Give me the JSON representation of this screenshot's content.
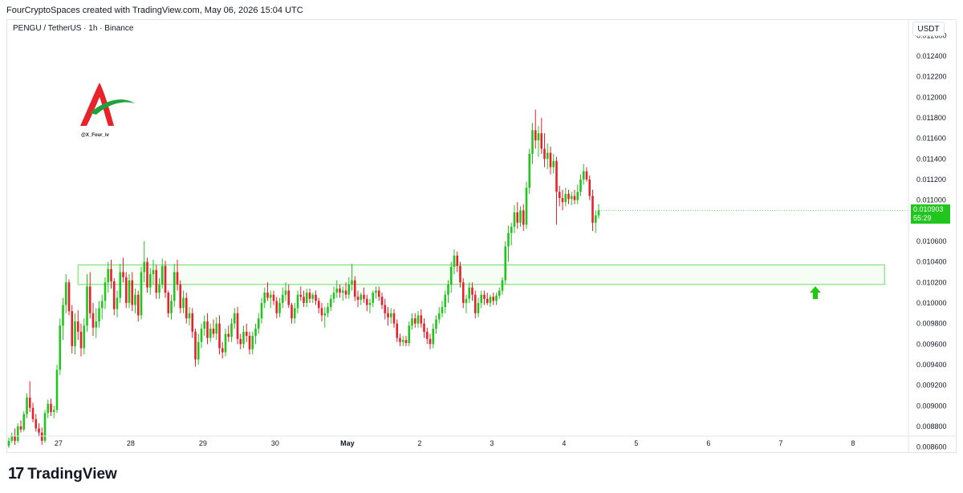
{
  "header": {
    "attribution": "FourCryptoSpaces created with TradingView.com, May 06, 2026 15:04 UTC"
  },
  "legend": {
    "symbol": "PENGU / TetherUS · 1h · Binance"
  },
  "watermark": {
    "handle": "@X_Four_iv"
  },
  "price_scale": {
    "currency": "USDT",
    "last_price": "0.010903",
    "countdown": "55:29",
    "last_price_color": "#22c51e"
  },
  "footer": {
    "brand": "TradingView",
    "logo_mark": "17"
  },
  "colors": {
    "up": "#22c51e",
    "down": "#e8212b",
    "zone": "#7ee37a",
    "arrow": "#1ec90f"
  },
  "chart_data": {
    "type": "candlestick",
    "title": "PENGU / TetherUS · 1h · Binance",
    "ylim": [
      0.00855,
      0.01275
    ],
    "y_ticks": [
      "0.012600",
      "0.012400",
      "0.012200",
      "0.012000",
      "0.011800",
      "0.011600",
      "0.011400",
      "0.011200",
      "0.011000",
      "0.010800",
      "0.010600",
      "0.010400",
      "0.010200",
      "0.010000",
      "0.009800",
      "0.009600",
      "0.009400",
      "0.009200",
      "0.009000",
      "0.008800",
      "0.008600"
    ],
    "y_tick_values": [
      0.0126,
      0.0124,
      0.0122,
      0.012,
      0.0118,
      0.0116,
      0.0114,
      0.0112,
      0.011,
      0.0108,
      0.0106,
      0.0104,
      0.0102,
      0.01,
      0.0098,
      0.0096,
      0.0094,
      0.0092,
      0.009,
      0.0088,
      0.0086
    ],
    "x_ticks": [
      {
        "label": "27",
        "t": 16.5
      },
      {
        "label": "28",
        "t": 40.5
      },
      {
        "label": "29",
        "t": 64.5
      },
      {
        "label": "30",
        "t": 88.5
      },
      {
        "label": "May",
        "t": 112.5,
        "bold": true
      },
      {
        "label": "2",
        "t": 136.5
      },
      {
        "label": "3",
        "t": 160.5
      },
      {
        "label": "4",
        "t": 184.5
      },
      {
        "label": "5",
        "t": 208.5
      },
      {
        "label": "6",
        "t": 232.5
      },
      {
        "label": "7",
        "t": 256.5
      },
      {
        "label": "8",
        "t": 280.5
      }
    ],
    "price_zone": {
      "low": 0.01018,
      "high": 0.01037,
      "t_start": 23,
      "t_end": 291
    },
    "arrow": {
      "t": 268,
      "price": 0.0101,
      "direction": "up"
    },
    "candles": [
      [
        0.00861,
        0.00869,
        0.00859,
        0.00866
      ],
      [
        0.00866,
        0.00874,
        0.00864,
        0.00871
      ],
      [
        0.00871,
        0.00878,
        0.00862,
        0.00866
      ],
      [
        0.00866,
        0.00883,
        0.00864,
        0.0088
      ],
      [
        0.0088,
        0.00886,
        0.00874,
        0.00877
      ],
      [
        0.00877,
        0.00895,
        0.00875,
        0.00892
      ],
      [
        0.00892,
        0.00912,
        0.00888,
        0.00908
      ],
      [
        0.00908,
        0.00924,
        0.00894,
        0.00898
      ],
      [
        0.00898,
        0.00903,
        0.00884,
        0.00887
      ],
      [
        0.00887,
        0.00892,
        0.00875,
        0.00878
      ],
      [
        0.00878,
        0.00883,
        0.0087,
        0.00874
      ],
      [
        0.00874,
        0.00879,
        0.00862,
        0.00866
      ],
      [
        0.00866,
        0.00896,
        0.00864,
        0.00893
      ],
      [
        0.00893,
        0.00906,
        0.00888,
        0.00902
      ],
      [
        0.00902,
        0.00907,
        0.0089,
        0.00894
      ],
      [
        0.00894,
        0.009,
        0.00888,
        0.00896
      ],
      [
        0.00896,
        0.0094,
        0.00893,
        0.00935
      ],
      [
        0.00935,
        0.00985,
        0.0093,
        0.00978
      ],
      [
        0.00978,
        0.01005,
        0.00964,
        0.00998
      ],
      [
        0.00998,
        0.01028,
        0.0099,
        0.0102
      ],
      [
        0.0102,
        0.01023,
        0.00988,
        0.00992
      ],
      [
        0.00992,
        0.00998,
        0.00951,
        0.00958
      ],
      [
        0.00958,
        0.0099,
        0.0095,
        0.00982
      ],
      [
        0.00982,
        0.00993,
        0.00964,
        0.00972
      ],
      [
        0.00972,
        0.0098,
        0.00948,
        0.00956
      ],
      [
        0.00956,
        0.00985,
        0.0095,
        0.00978
      ],
      [
        0.00978,
        0.01028,
        0.00972,
        0.01016
      ],
      [
        0.01016,
        0.0103,
        0.00985,
        0.0099
      ],
      [
        0.0099,
        0.01,
        0.00968,
        0.00976
      ],
      [
        0.00976,
        0.00995,
        0.00966,
        0.00982
      ],
      [
        0.00982,
        0.01002,
        0.00976,
        0.00995
      ],
      [
        0.00995,
        0.01008,
        0.00984,
        0.01002
      ],
      [
        0.01002,
        0.01025,
        0.00994,
        0.0102
      ],
      [
        0.0102,
        0.0104,
        0.0101,
        0.01033
      ],
      [
        0.01033,
        0.01042,
        0.01014,
        0.01021
      ],
      [
        0.01021,
        0.01024,
        0.00988,
        0.00994
      ],
      [
        0.00994,
        0.01012,
        0.00986,
        0.01005
      ],
      [
        0.01005,
        0.01038,
        0.01,
        0.0103
      ],
      [
        0.0103,
        0.01044,
        0.0102,
        0.01025
      ],
      [
        0.01025,
        0.0103,
        0.00995,
        0.01
      ],
      [
        0.01,
        0.01028,
        0.00995,
        0.01022
      ],
      [
        0.01022,
        0.0103,
        0.00992,
        0.00998
      ],
      [
        0.00998,
        0.01014,
        0.0099,
        0.01008
      ],
      [
        0.01008,
        0.01012,
        0.00982,
        0.00988
      ],
      [
        0.00988,
        0.01035,
        0.00984,
        0.0103
      ],
      [
        0.0103,
        0.0106,
        0.0102,
        0.0104
      ],
      [
        0.0104,
        0.01044,
        0.0101,
        0.01015
      ],
      [
        0.01015,
        0.01034,
        0.01008,
        0.01028
      ],
      [
        0.01028,
        0.01042,
        0.01018,
        0.01032
      ],
      [
        0.01032,
        0.01037,
        0.01004,
        0.0101
      ],
      [
        0.0101,
        0.01024,
        0.01004,
        0.01018
      ],
      [
        0.01018,
        0.01043,
        0.01014,
        0.01036
      ],
      [
        0.01036,
        0.01041,
        0.01005,
        0.0101
      ],
      [
        0.0101,
        0.01012,
        0.00986,
        0.0099
      ],
      [
        0.0099,
        0.01008,
        0.00984,
        0.01002
      ],
      [
        0.01002,
        0.01038,
        0.00996,
        0.0103
      ],
      [
        0.0103,
        0.01042,
        0.01012,
        0.01018
      ],
      [
        0.01018,
        0.01022,
        0.0099,
        0.00995
      ],
      [
        0.00995,
        0.01012,
        0.0099,
        0.01005
      ],
      [
        0.01005,
        0.0101,
        0.0098,
        0.00985
      ],
      [
        0.00985,
        0.00996,
        0.00978,
        0.0099
      ],
      [
        0.0099,
        0.00995,
        0.00966,
        0.00972
      ],
      [
        0.00972,
        0.00975,
        0.00938,
        0.00945
      ],
      [
        0.00945,
        0.0097,
        0.0094,
        0.00962
      ],
      [
        0.00962,
        0.0098,
        0.00956,
        0.00975
      ],
      [
        0.00975,
        0.00988,
        0.00968,
        0.00982
      ],
      [
        0.00982,
        0.0099,
        0.0096,
        0.00966
      ],
      [
        0.00966,
        0.0098,
        0.00962,
        0.00975
      ],
      [
        0.00975,
        0.00984,
        0.00966,
        0.0097
      ],
      [
        0.0097,
        0.00986,
        0.00964,
        0.0098
      ],
      [
        0.0098,
        0.00988,
        0.0095,
        0.00956
      ],
      [
        0.00956,
        0.00962,
        0.00946,
        0.00952
      ],
      [
        0.00952,
        0.00975,
        0.00948,
        0.0097
      ],
      [
        0.0097,
        0.00978,
        0.00962,
        0.00967
      ],
      [
        0.00967,
        0.00985,
        0.00962,
        0.0098
      ],
      [
        0.0098,
        0.00995,
        0.00975,
        0.0099
      ],
      [
        0.0099,
        0.00996,
        0.0096,
        0.00965
      ],
      [
        0.00965,
        0.0097,
        0.00955,
        0.0096
      ],
      [
        0.0096,
        0.00978,
        0.00956,
        0.00972
      ],
      [
        0.00972,
        0.0098,
        0.00962,
        0.00968
      ],
      [
        0.00968,
        0.00972,
        0.0095,
        0.00955
      ],
      [
        0.00955,
        0.00972,
        0.0095,
        0.00968
      ],
      [
        0.00968,
        0.0098,
        0.0096,
        0.00975
      ],
      [
        0.00975,
        0.0099,
        0.0097,
        0.00985
      ],
      [
        0.00985,
        0.01005,
        0.0098,
        0.01
      ],
      [
        0.01,
        0.01015,
        0.00995,
        0.0101
      ],
      [
        0.0101,
        0.0102,
        0.01002,
        0.01005
      ],
      [
        0.01005,
        0.01012,
        0.00995,
        0.01008
      ],
      [
        0.01008,
        0.01012,
        0.00998,
        0.01002
      ],
      [
        0.01002,
        0.01006,
        0.00985,
        0.0099
      ],
      [
        0.0099,
        0.01005,
        0.00986,
        0.01
      ],
      [
        0.01,
        0.01015,
        0.00995,
        0.01008
      ],
      [
        0.01008,
        0.0102,
        0.01002,
        0.01012
      ],
      [
        0.01012,
        0.01018,
        0.00995,
        0.00998
      ],
      [
        0.00998,
        0.01,
        0.0098,
        0.00985
      ],
      [
        0.00985,
        0.01,
        0.0098,
        0.00995
      ],
      [
        0.00995,
        0.01012,
        0.0099,
        0.01008
      ],
      [
        0.01008,
        0.01016,
        0.01002,
        0.01006
      ],
      [
        0.01006,
        0.01012,
        0.00996,
        0.01
      ],
      [
        0.01,
        0.01014,
        0.00996,
        0.0101
      ],
      [
        0.0101,
        0.01014,
        0.01,
        0.01004
      ],
      [
        0.01004,
        0.0101,
        0.01,
        0.01008
      ],
      [
        0.01008,
        0.01012,
        0.00998,
        0.01002
      ],
      [
        0.01002,
        0.01005,
        0.0099,
        0.00995
      ],
      [
        0.00995,
        0.01,
        0.00982,
        0.00988
      ],
      [
        0.00988,
        0.00996,
        0.00976,
        0.0099
      ],
      [
        0.0099,
        0.01,
        0.00986,
        0.00996
      ],
      [
        0.00996,
        0.01008,
        0.00992,
        0.01004
      ],
      [
        0.01004,
        0.01016,
        0.01,
        0.0101
      ],
      [
        0.0101,
        0.01022,
        0.01005,
        0.01014
      ],
      [
        0.01014,
        0.01018,
        0.01005,
        0.0101
      ],
      [
        0.0101,
        0.01016,
        0.01002,
        0.01012
      ],
      [
        0.01012,
        0.0102,
        0.01004,
        0.01008
      ],
      [
        0.01008,
        0.01025,
        0.01004,
        0.01018
      ],
      [
        0.01018,
        0.01038,
        0.01012,
        0.01022
      ],
      [
        0.01022,
        0.01026,
        0.01002,
        0.01006
      ],
      [
        0.01006,
        0.01012,
        0.00996,
        0.01003
      ],
      [
        0.01003,
        0.0101,
        0.00998,
        0.01008
      ],
      [
        0.01008,
        0.01015,
        0.01,
        0.01004
      ],
      [
        0.01004,
        0.01008,
        0.00992,
        0.00998
      ],
      [
        0.00998,
        0.01004,
        0.0099,
        0.01
      ],
      [
        0.01,
        0.01012,
        0.00996,
        0.0101
      ],
      [
        0.0101,
        0.01016,
        0.01004,
        0.01012
      ],
      [
        0.01012,
        0.01016,
        0.01002,
        0.01006
      ],
      [
        0.01006,
        0.0101,
        0.00994,
        0.00998
      ],
      [
        0.00998,
        0.01004,
        0.00984,
        0.0099
      ],
      [
        0.0099,
        0.00996,
        0.00978,
        0.00986
      ],
      [
        0.00986,
        0.00995,
        0.0098,
        0.0099
      ],
      [
        0.0099,
        0.00994,
        0.00976,
        0.0098
      ],
      [
        0.0098,
        0.00984,
        0.00962,
        0.00966
      ],
      [
        0.00966,
        0.0097,
        0.00958,
        0.00962
      ],
      [
        0.00962,
        0.00968,
        0.00958,
        0.00964
      ],
      [
        0.00964,
        0.00968,
        0.00958,
        0.00961
      ],
      [
        0.00961,
        0.00982,
        0.00958,
        0.00978
      ],
      [
        0.00978,
        0.0099,
        0.00974,
        0.00985
      ],
      [
        0.00985,
        0.0099,
        0.00976,
        0.0098
      ],
      [
        0.0098,
        0.00992,
        0.00976,
        0.00988
      ],
      [
        0.00988,
        0.00994,
        0.00976,
        0.0098
      ],
      [
        0.0098,
        0.00985,
        0.00966,
        0.00972
      ],
      [
        0.00972,
        0.00976,
        0.0096,
        0.00965
      ],
      [
        0.00965,
        0.0097,
        0.00955,
        0.0096
      ],
      [
        0.0096,
        0.0098,
        0.00956,
        0.00975
      ],
      [
        0.00975,
        0.00988,
        0.0097,
        0.00984
      ],
      [
        0.00984,
        0.00996,
        0.0098,
        0.0099
      ],
      [
        0.0099,
        0.01002,
        0.00986,
        0.00996
      ],
      [
        0.00996,
        0.01012,
        0.0099,
        0.01008
      ],
      [
        0.01008,
        0.01022,
        0.01,
        0.01018
      ],
      [
        0.01018,
        0.0104,
        0.0101,
        0.01035
      ],
      [
        0.01035,
        0.01052,
        0.01028,
        0.01046
      ],
      [
        0.01046,
        0.0105,
        0.0103,
        0.01036
      ],
      [
        0.01036,
        0.0104,
        0.01015,
        0.0102
      ],
      [
        0.0102,
        0.01024,
        0.00995,
        0.01
      ],
      [
        0.01,
        0.01008,
        0.0099,
        0.01004
      ],
      [
        0.01004,
        0.0102,
        0.01,
        0.01015
      ],
      [
        0.01015,
        0.0102,
        0.01002,
        0.01008
      ],
      [
        0.01008,
        0.01012,
        0.00985,
        0.0099
      ],
      [
        0.0099,
        0.01005,
        0.00986,
        0.01
      ],
      [
        0.01,
        0.01012,
        0.00995,
        0.01008
      ],
      [
        0.01008,
        0.01012,
        0.00998,
        0.01004
      ],
      [
        0.01004,
        0.0101,
        0.00998,
        0.01
      ],
      [
        0.01,
        0.01008,
        0.00996,
        0.01006
      ],
      [
        0.01006,
        0.0101,
        0.00998,
        0.01002
      ],
      [
        0.01002,
        0.0101,
        0.00998,
        0.01007
      ],
      [
        0.01007,
        0.01015,
        0.01004,
        0.01012
      ],
      [
        0.01012,
        0.01025,
        0.01008,
        0.01022
      ],
      [
        0.01022,
        0.0106,
        0.01018,
        0.01055
      ],
      [
        0.01055,
        0.01075,
        0.0104,
        0.01068
      ],
      [
        0.01068,
        0.01078,
        0.01056,
        0.01074
      ],
      [
        0.01074,
        0.01095,
        0.01068,
        0.01088
      ],
      [
        0.01088,
        0.01098,
        0.01072,
        0.01078
      ],
      [
        0.01078,
        0.01094,
        0.01074,
        0.0109
      ],
      [
        0.0109,
        0.01096,
        0.0107,
        0.01076
      ],
      [
        0.01076,
        0.01118,
        0.01072,
        0.01112
      ],
      [
        0.01112,
        0.0115,
        0.01106,
        0.01145
      ],
      [
        0.01145,
        0.01175,
        0.01135,
        0.01168
      ],
      [
        0.01168,
        0.01188,
        0.0115,
        0.01158
      ],
      [
        0.01158,
        0.01172,
        0.01142,
        0.01165
      ],
      [
        0.01165,
        0.0118,
        0.01145,
        0.0115
      ],
      [
        0.0115,
        0.01165,
        0.01132,
        0.0114
      ],
      [
        0.0114,
        0.01155,
        0.0113,
        0.01146
      ],
      [
        0.01146,
        0.01152,
        0.01125,
        0.01132
      ],
      [
        0.01132,
        0.01145,
        0.01126,
        0.01138
      ],
      [
        0.01138,
        0.01142,
        0.01076,
        0.01108
      ],
      [
        0.01108,
        0.01114,
        0.01094,
        0.01102
      ],
      [
        0.01102,
        0.0111,
        0.0109,
        0.01098
      ],
      [
        0.01098,
        0.01112,
        0.01094,
        0.01106
      ],
      [
        0.01106,
        0.0111,
        0.01096,
        0.01101
      ],
      [
        0.01101,
        0.01108,
        0.01095,
        0.01104
      ],
      [
        0.01104,
        0.0111,
        0.01096,
        0.011
      ],
      [
        0.011,
        0.01115,
        0.01096,
        0.01108
      ],
      [
        0.01108,
        0.01125,
        0.01104,
        0.0112
      ],
      [
        0.0112,
        0.01135,
        0.01115,
        0.01128
      ],
      [
        0.01128,
        0.01132,
        0.01118,
        0.0112
      ],
      [
        0.0112,
        0.01124,
        0.011,
        0.01104
      ],
      [
        0.01104,
        0.0111,
        0.0107,
        0.01078
      ],
      [
        0.01078,
        0.0109,
        0.01068,
        0.01085
      ],
      [
        0.01085,
        0.01096,
        0.01082,
        0.0109
      ]
    ]
  }
}
